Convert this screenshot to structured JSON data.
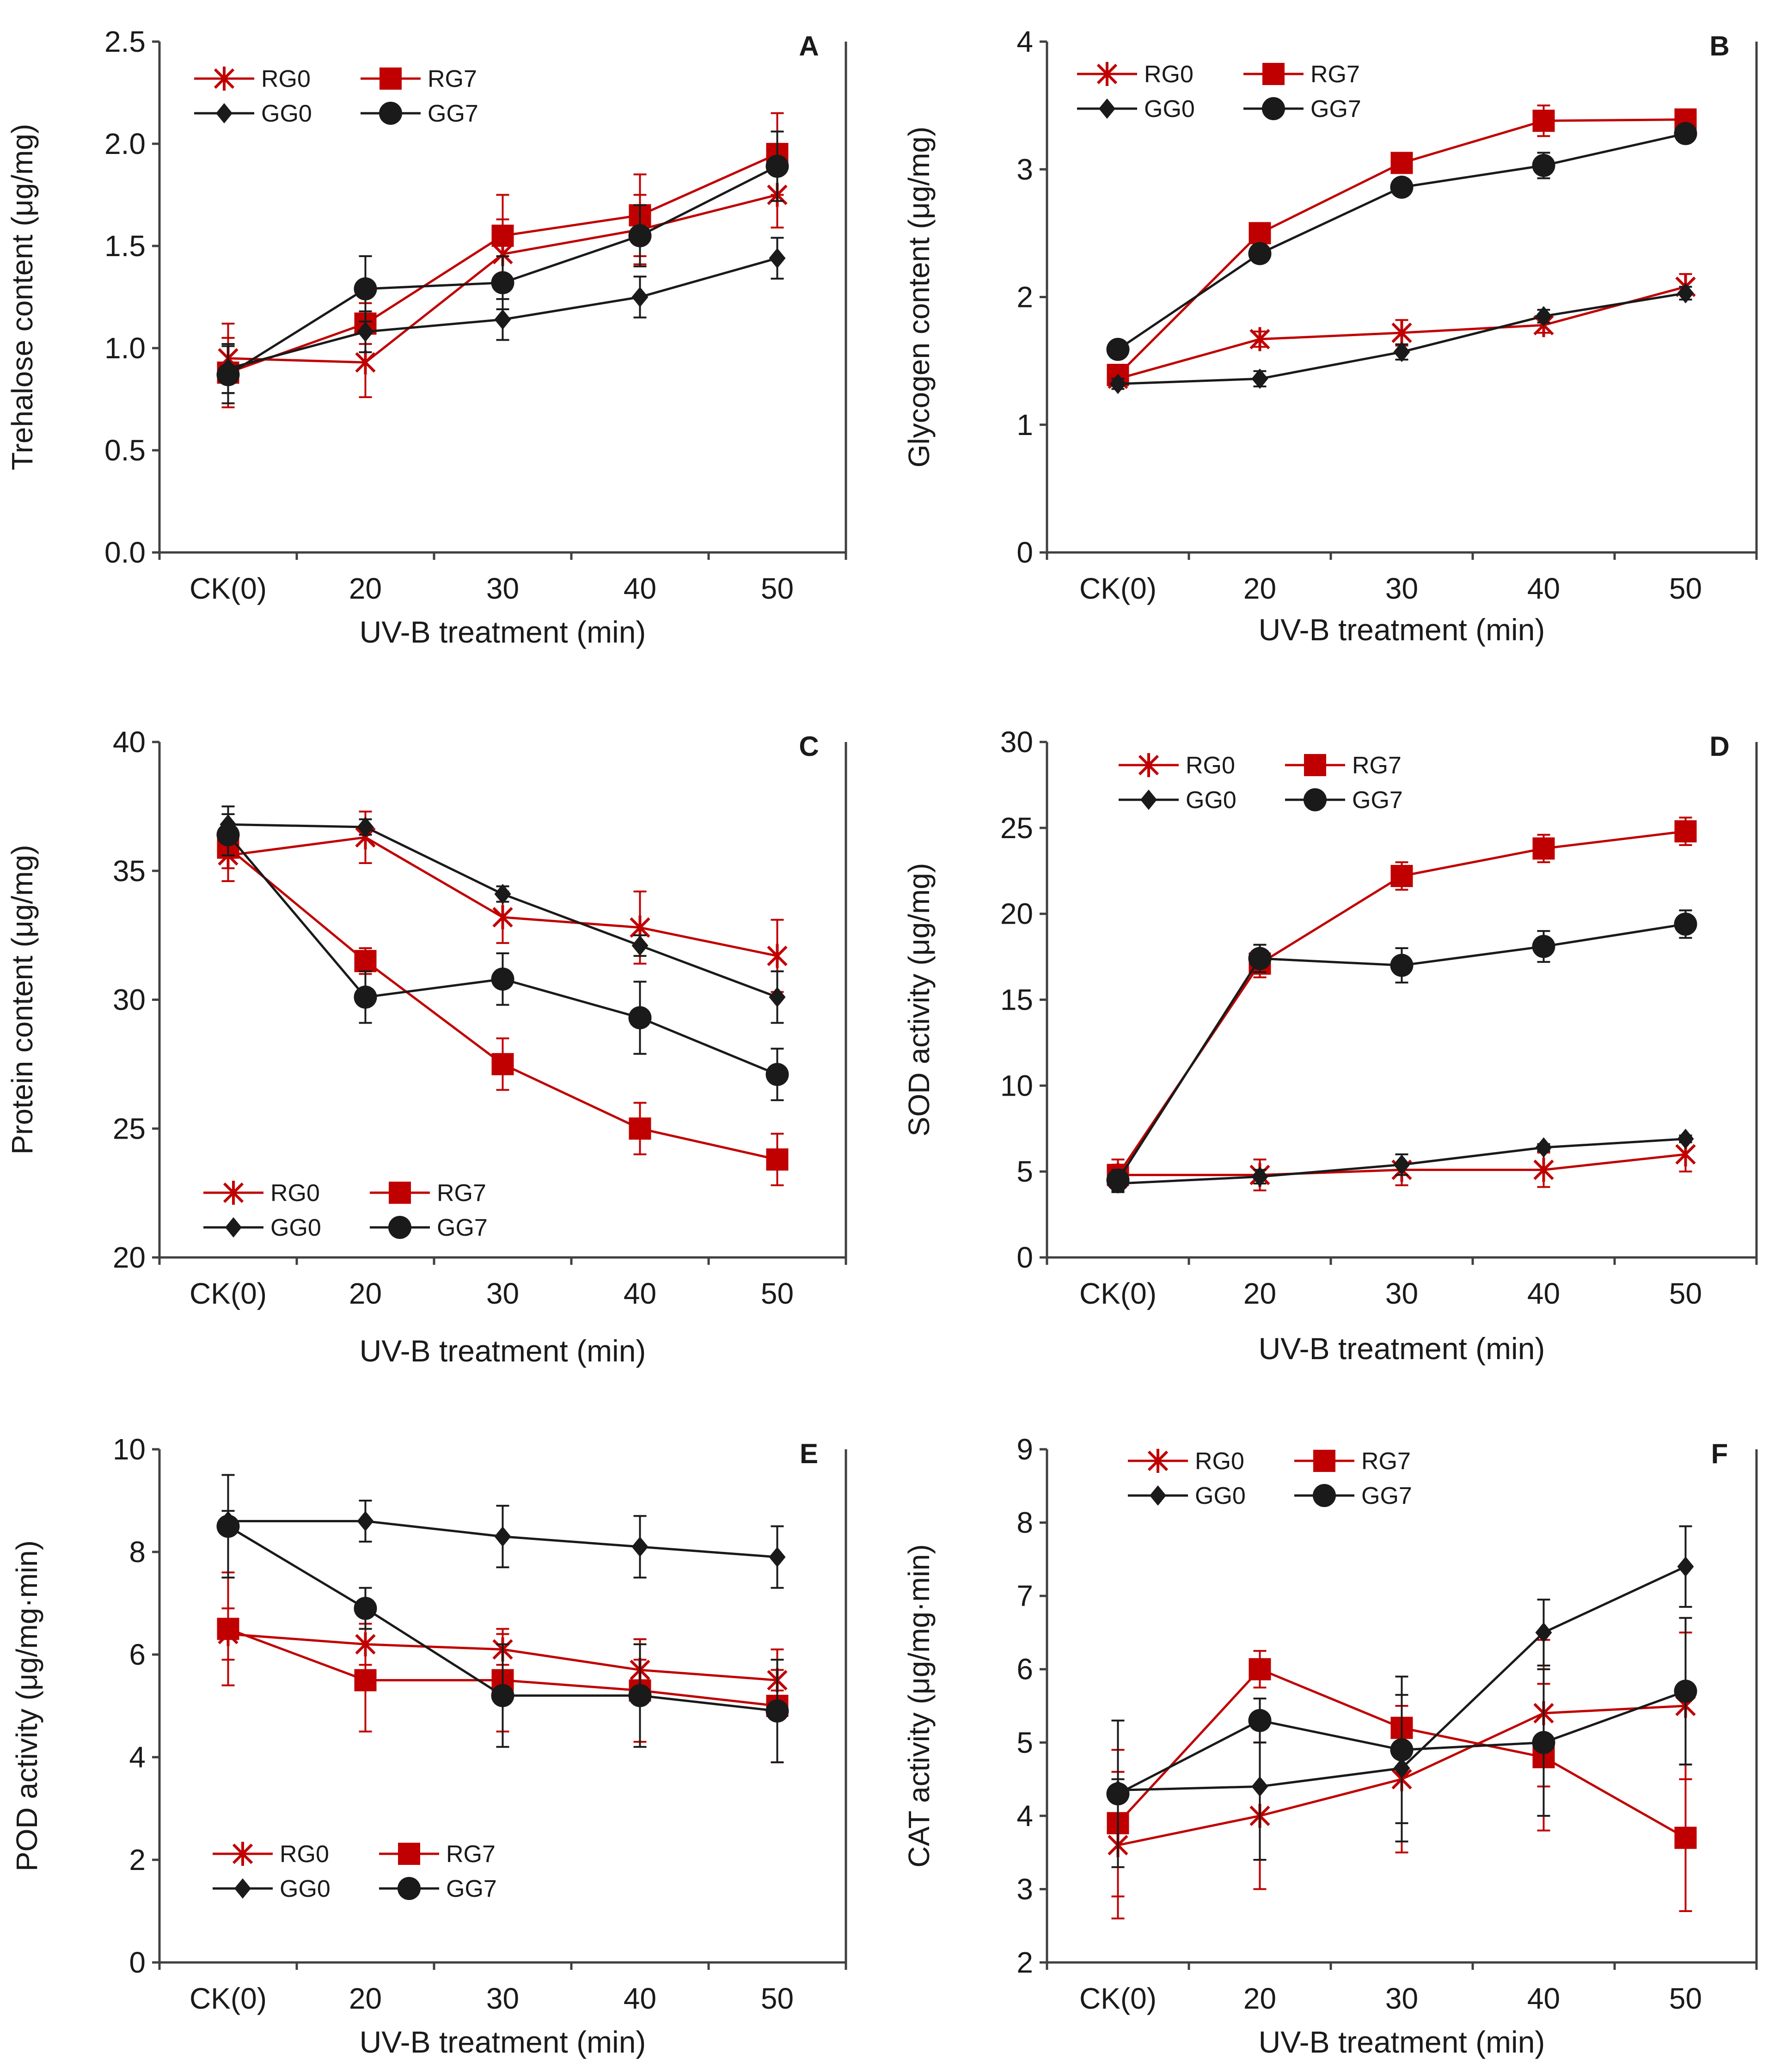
{
  "colors": {
    "red": "#C00000",
    "black": "#1a1a1a",
    "axis": "#404040"
  },
  "chart_data": [
    {
      "id": "A",
      "type": "line",
      "panel_label": "A",
      "categories": [
        "CK(0)",
        "20",
        "30",
        "40",
        "50"
      ],
      "xlabel": "UV-B treatment (min)",
      "ylabel": "Trehalose content (μg/mg)",
      "ylim": [
        0,
        2.5
      ],
      "yticks": [
        "0.0",
        "0.5",
        "1.0",
        "1.5",
        "2.0",
        "2.5"
      ],
      "legend_rows": [
        [
          "RG0",
          "RG7"
        ],
        [
          "GG0",
          "GG7"
        ]
      ],
      "legend_placement": "top-left",
      "series": [
        {
          "name": "RG0",
          "color": "#C00000",
          "marker": "asterisk",
          "values": [
            0.95,
            0.93,
            1.46,
            1.58,
            1.75
          ],
          "errors": [
            0.17,
            0.17,
            0.17,
            0.17,
            0.16
          ]
        },
        {
          "name": "RG7",
          "color": "#C00000",
          "marker": "square",
          "values": [
            0.88,
            1.12,
            1.55,
            1.65,
            1.95
          ],
          "errors": [
            0.17,
            0.1,
            0.2,
            0.2,
            0.2
          ]
        },
        {
          "name": "GG0",
          "color": "#1a1a1a",
          "marker": "diamond",
          "values": [
            0.9,
            1.08,
            1.14,
            1.25,
            1.44
          ],
          "errors": [
            0.12,
            0.1,
            0.1,
            0.1,
            0.1
          ]
        },
        {
          "name": "GG7",
          "color": "#1a1a1a",
          "marker": "circle",
          "values": [
            0.87,
            1.29,
            1.32,
            1.55,
            1.89
          ],
          "errors": [
            0.14,
            0.16,
            0.13,
            0.15,
            0.17
          ]
        }
      ]
    },
    {
      "id": "B",
      "type": "line",
      "panel_label": "B",
      "categories": [
        "CK(0)",
        "20",
        "30",
        "40",
        "50"
      ],
      "xlabel": "UV-B treatment (min)",
      "ylabel": "Glycogen content (μg/mg)",
      "ylim": [
        0,
        4
      ],
      "yticks": [
        "0",
        "1",
        "2",
        "3",
        "4"
      ],
      "legend_rows": [
        [
          "RG0",
          "RG7"
        ],
        [
          "GG0",
          "GG7"
        ]
      ],
      "legend_placement": "top-left",
      "series": [
        {
          "name": "RG0",
          "color": "#C00000",
          "marker": "asterisk",
          "values": [
            1.36,
            1.67,
            1.72,
            1.78,
            2.08
          ],
          "errors": [
            0.05,
            0.06,
            0.1,
            0.06,
            0.1
          ]
        },
        {
          "name": "RG7",
          "color": "#C00000",
          "marker": "square",
          "values": [
            1.39,
            2.5,
            3.05,
            3.38,
            3.39
          ],
          "errors": [
            0.05,
            0.06,
            0.05,
            0.12,
            0.06
          ]
        },
        {
          "name": "GG0",
          "color": "#1a1a1a",
          "marker": "diamond",
          "values": [
            1.32,
            1.36,
            1.57,
            1.85,
            2.03
          ],
          "errors": [
            0.04,
            0.06,
            0.06,
            0.05,
            0.05
          ]
        },
        {
          "name": "GG7",
          "color": "#1a1a1a",
          "marker": "circle",
          "values": [
            1.59,
            2.34,
            2.86,
            3.03,
            3.28
          ],
          "errors": [
            0.04,
            0.07,
            0.05,
            0.1,
            0.06
          ]
        }
      ]
    },
    {
      "id": "C",
      "type": "line",
      "panel_label": "C",
      "categories": [
        "CK(0)",
        "20",
        "30",
        "40",
        "50"
      ],
      "xlabel": "UV-B treatment (min)",
      "ylabel": "Protein content (μg/mg)",
      "ylim": [
        20,
        40
      ],
      "yticks": [
        "20",
        "25",
        "30",
        "35",
        "40"
      ],
      "legend_rows": [
        [
          "RG0",
          "RG7"
        ],
        [
          "GG0",
          "GG7"
        ]
      ],
      "legend_placement": "bottom-left",
      "series": [
        {
          "name": "RG0",
          "color": "#C00000",
          "marker": "asterisk",
          "values": [
            35.6,
            36.3,
            33.2,
            32.8,
            31.7
          ],
          "errors": [
            1.0,
            1.0,
            1.0,
            1.4,
            1.4
          ]
        },
        {
          "name": "RG7",
          "color": "#C00000",
          "marker": "square",
          "values": [
            35.9,
            31.5,
            27.5,
            25.0,
            23.8
          ],
          "errors": [
            0.8,
            0.5,
            1.0,
            1.0,
            1.0
          ]
        },
        {
          "name": "GG0",
          "color": "#1a1a1a",
          "marker": "diamond",
          "values": [
            36.8,
            36.7,
            34.1,
            32.1,
            30.1
          ],
          "errors": [
            0.7,
            0.3,
            0.3,
            0.4,
            1.0
          ]
        },
        {
          "name": "GG7",
          "color": "#1a1a1a",
          "marker": "circle",
          "values": [
            36.4,
            30.1,
            30.8,
            29.3,
            27.1
          ],
          "errors": [
            0.8,
            1.0,
            1.0,
            1.4,
            1.0
          ]
        }
      ]
    },
    {
      "id": "D",
      "type": "line",
      "panel_label": "D",
      "categories": [
        "CK(0)",
        "20",
        "30",
        "40",
        "50"
      ],
      "xlabel": "UV-B treatment (min)",
      "ylabel": "SOD activity (μg/mg)",
      "ylim": [
        0,
        30
      ],
      "yticks": [
        "0",
        "5",
        "10",
        "15",
        "20",
        "25",
        "30"
      ],
      "legend_rows": [
        [
          "RG0",
          "RG7"
        ],
        [
          "GG0",
          "GG7"
        ]
      ],
      "legend_placement": "top-left",
      "series": [
        {
          "name": "RG0",
          "color": "#C00000",
          "marker": "asterisk",
          "values": [
            4.8,
            4.8,
            5.1,
            5.1,
            6.0
          ],
          "errors": [
            0.9,
            0.9,
            0.9,
            1.0,
            1.0
          ]
        },
        {
          "name": "RG7",
          "color": "#C00000",
          "marker": "square",
          "values": [
            4.8,
            17.1,
            22.2,
            23.8,
            24.8
          ],
          "errors": [
            0.6,
            0.8,
            0.8,
            0.8,
            0.8
          ]
        },
        {
          "name": "GG0",
          "color": "#1a1a1a",
          "marker": "diamond",
          "values": [
            4.3,
            4.7,
            5.4,
            6.4,
            6.9
          ],
          "errors": [
            0.5,
            0.4,
            0.6,
            0.2,
            0.2
          ]
        },
        {
          "name": "GG7",
          "color": "#1a1a1a",
          "marker": "circle",
          "values": [
            4.5,
            17.4,
            17.0,
            18.1,
            19.4
          ],
          "errors": [
            0.6,
            0.8,
            1.0,
            0.9,
            0.8
          ]
        }
      ]
    },
    {
      "id": "E",
      "type": "line",
      "panel_label": "E",
      "categories": [
        "CK(0)",
        "20",
        "30",
        "40",
        "50"
      ],
      "xlabel": "UV-B treatment (min)",
      "ylabel": "POD activity (μg/mg·min)",
      "ylim": [
        0,
        10
      ],
      "yticks": [
        "0",
        "2",
        "4",
        "6",
        "8",
        "10"
      ],
      "legend_rows": [
        [
          "RG0",
          "RG7"
        ],
        [
          "GG0",
          "GG7"
        ]
      ],
      "legend_placement": "bottom-left",
      "series": [
        {
          "name": "RG0",
          "color": "#C00000",
          "marker": "asterisk",
          "values": [
            6.4,
            6.2,
            6.1,
            5.7,
            5.5
          ],
          "errors": [
            0.5,
            0.4,
            0.3,
            0.2,
            0.2
          ]
        },
        {
          "name": "RG7",
          "color": "#C00000",
          "marker": "square",
          "values": [
            6.5,
            5.5,
            5.5,
            5.3,
            5.0
          ],
          "errors": [
            1.1,
            1.0,
            1.0,
            1.0,
            1.1
          ]
        },
        {
          "name": "GG0",
          "color": "#1a1a1a",
          "marker": "diamond",
          "values": [
            8.6,
            8.6,
            8.3,
            8.1,
            7.9
          ],
          "errors": [
            0.2,
            0.4,
            0.6,
            0.6,
            0.6
          ]
        },
        {
          "name": "GG7",
          "color": "#1a1a1a",
          "marker": "circle",
          "values": [
            8.5,
            6.9,
            5.2,
            5.2,
            4.9
          ],
          "errors": [
            1.0,
            0.4,
            1.0,
            1.0,
            1.0
          ]
        }
      ]
    },
    {
      "id": "F",
      "type": "line",
      "panel_label": "F",
      "categories": [
        "CK(0)",
        "20",
        "30",
        "40",
        "50"
      ],
      "xlabel": "UV-B treatment (min)",
      "ylabel": "CAT activity (μg/mg·min)",
      "ylim": [
        2,
        9
      ],
      "yticks": [
        "2",
        "3",
        "4",
        "5",
        "6",
        "7",
        "8",
        "9"
      ],
      "legend_rows": [
        [
          "RG0",
          "RG7"
        ],
        [
          "GG0",
          "GG7"
        ]
      ],
      "legend_placement": "top-left",
      "series": [
        {
          "name": "RG0",
          "color": "#C00000",
          "marker": "asterisk",
          "values": [
            3.6,
            4.0,
            4.5,
            5.4,
            5.5
          ],
          "errors": [
            1.0,
            1.0,
            1.0,
            1.0,
            1.0
          ]
        },
        {
          "name": "RG7",
          "color": "#C00000",
          "marker": "square",
          "values": [
            3.9,
            6.0,
            5.2,
            4.8,
            3.7
          ],
          "errors": [
            1.0,
            0.25,
            0.1,
            1.0,
            1.0
          ]
        },
        {
          "name": "GG0",
          "color": "#1a1a1a",
          "marker": "diamond",
          "values": [
            4.35,
            4.4,
            4.65,
            6.5,
            7.4
          ],
          "errors": [
            0.15,
            1.0,
            1.0,
            0.45,
            0.55
          ]
        },
        {
          "name": "GG7",
          "color": "#1a1a1a",
          "marker": "circle",
          "values": [
            4.3,
            5.3,
            4.9,
            5.0,
            5.7
          ],
          "errors": [
            1.0,
            0.3,
            1.0,
            1.0,
            1.0
          ]
        }
      ]
    }
  ]
}
